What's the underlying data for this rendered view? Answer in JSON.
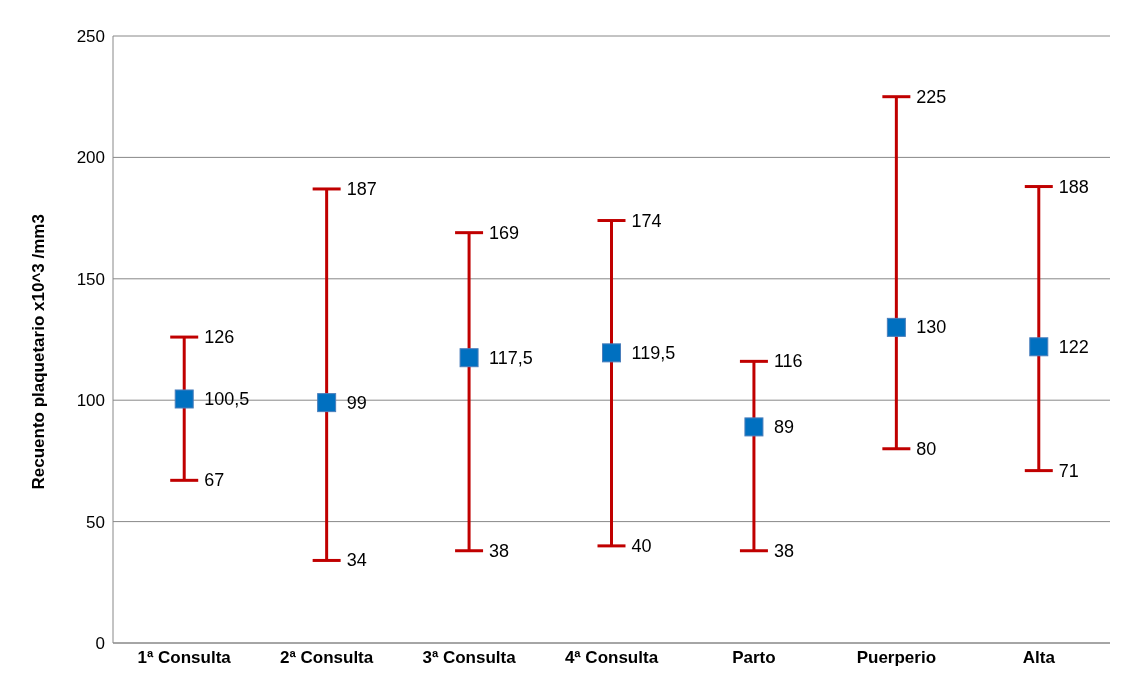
{
  "chart_data": {
    "type": "scatter",
    "ylabel": "Recuento plaquetario x10^3 /mm3",
    "categories": [
      "1ª Consulta",
      "2ª Consulta",
      "3ª Consulta",
      "4ª Consulta",
      "Parto",
      "Puerperio",
      "Alta"
    ],
    "series": [
      {
        "color": "#0070c0",
        "values": [
          100.5,
          99,
          117.5,
          119.5,
          89,
          130,
          122
        ],
        "value_labels": [
          "100,5",
          "99",
          "117,5",
          "119,5",
          "89",
          "130",
          "122"
        ],
        "errors": [
          [
            67,
            126
          ],
          [
            34,
            187
          ],
          [
            38,
            169
          ],
          [
            40,
            174
          ],
          [
            38,
            116
          ],
          [
            80,
            225
          ],
          [
            71,
            188
          ]
        ]
      }
    ],
    "ylim": [
      0,
      250
    ],
    "yticks": [
      0,
      50,
      100,
      150,
      200,
      250
    ],
    "grid": "y",
    "marker": "square",
    "legend": false,
    "annotations": [
      {
        "text": "126",
        "x": "1ª Consulta",
        "y": 126
      },
      {
        "text": "67",
        "x": "1ª Consulta",
        "y": 67
      },
      {
        "text": "187",
        "x": "2ª Consulta",
        "y": 187
      },
      {
        "text": "34",
        "x": "2ª Consulta",
        "y": 34
      },
      {
        "text": "169",
        "x": "3ª Consulta",
        "y": 169
      },
      {
        "text": "38",
        "x": "3ª Consulta",
        "y": 38
      },
      {
        "text": "174",
        "x": "4ª Consulta",
        "y": 174
      },
      {
        "text": "40",
        "x": "4ª Consulta",
        "y": 40
      },
      {
        "text": "116",
        "x": "Parto",
        "y": 116
      },
      {
        "text": "38",
        "x": "Parto",
        "y": 38
      },
      {
        "text": "225",
        "x": "Puerperio",
        "y": 225
      },
      {
        "text": "80",
        "x": "Puerperio",
        "y": 80
      },
      {
        "text": "188",
        "x": "Alta",
        "y": 188
      },
      {
        "text": "71",
        "x": "Alta",
        "y": 71
      }
    ]
  }
}
